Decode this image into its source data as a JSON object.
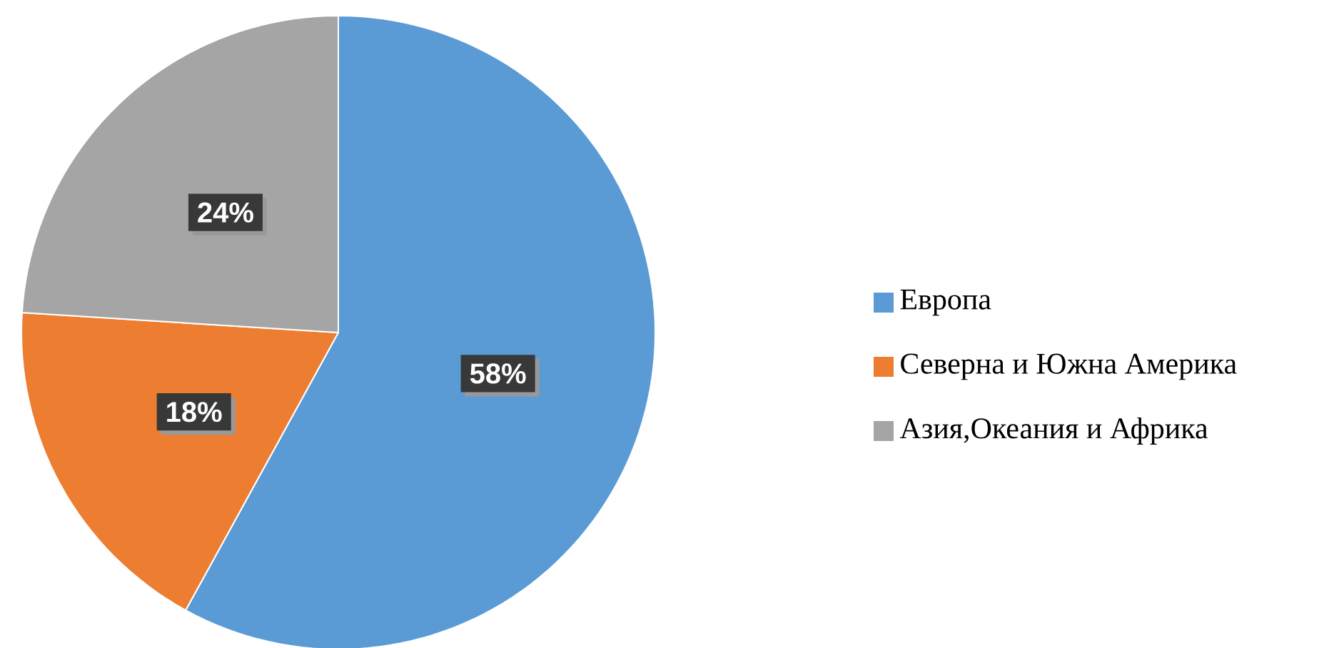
{
  "chart_data": {
    "type": "pie",
    "categories": [
      "Европа",
      "Северна и Южна Америка",
      "Азия,Океания и Африка"
    ],
    "values": [
      58,
      18,
      24
    ],
    "value_labels": [
      "58%",
      "18%",
      "24%"
    ],
    "colors": [
      "#5b9bd5",
      "#ed7d31",
      "#a5a5a5"
    ],
    "legend": "right"
  }
}
